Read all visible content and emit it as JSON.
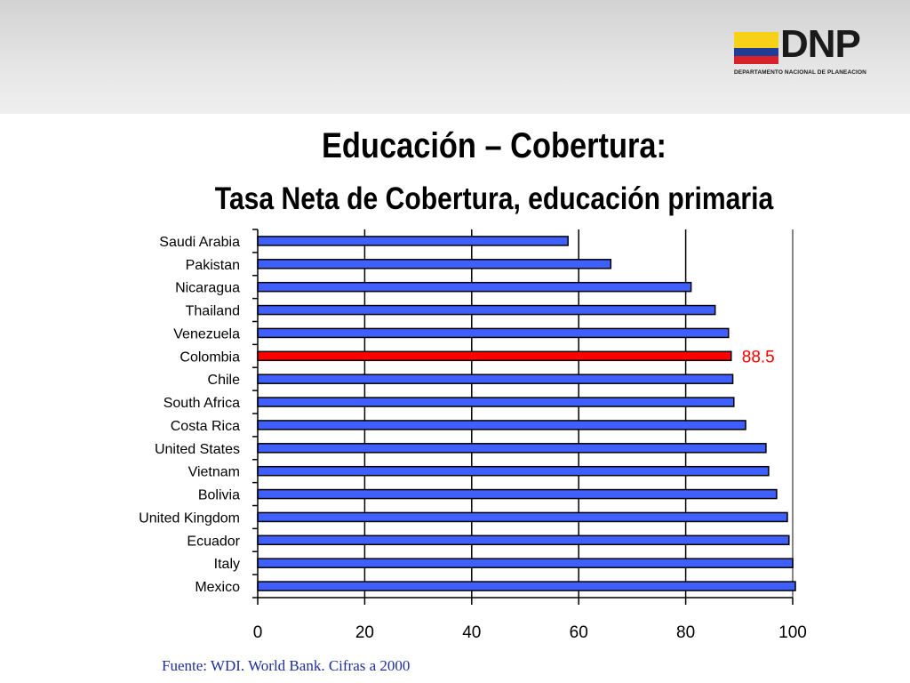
{
  "logo": {
    "name": "DNP",
    "subtitle": "DEPARTAMENTO NACIONAL DE PLANEACION"
  },
  "title": "Educación – Cobertura:",
  "subtitle": "Tasa Neta de Cobertura, educación primaria",
  "source": "Fuente: WDI. World Bank. Cifras a 2000",
  "chart_data": {
    "type": "bar",
    "orientation": "horizontal",
    "categories": [
      "Saudi Arabia",
      "Pakistan",
      "Nicaragua",
      "Thailand",
      "Venezuela",
      "Colombia",
      "Chile",
      "South Africa",
      "Costa Rica",
      "United States",
      "Vietnam",
      "Bolivia",
      "United Kingdom",
      "Ecuador",
      "Italy",
      "Mexico"
    ],
    "values": [
      58,
      66,
      81,
      85.5,
      88,
      88.5,
      88.8,
      89,
      91.2,
      95,
      95.5,
      97,
      99,
      99.3,
      100,
      100.5
    ],
    "highlight": {
      "category": "Colombia",
      "label": "88.5",
      "color": "#ff0000"
    },
    "bar_color": "#3f5fff",
    "xlim": [
      0,
      100
    ],
    "xticks": [
      0,
      20,
      40,
      60,
      80,
      100
    ],
    "grid": true,
    "legend": "none"
  }
}
